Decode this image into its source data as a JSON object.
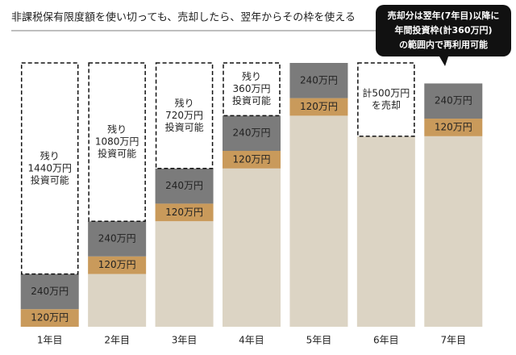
{
  "chart_data": {
    "type": "stacked-bar",
    "title": "非課税保有限度額を使い切っても、売却したら、翌年からその枠を使える",
    "callout": [
      "売却分は翌年(7年目)以降に",
      "年間投資枠(計360万円)",
      "の範囲内で再利用可能"
    ],
    "categories": [
      "1年目",
      "2年目",
      "3年目",
      "4年目",
      "5年目",
      "6年目",
      "7年目"
    ],
    "ylim": [
      0,
      1800
    ],
    "series": [
      {
        "color": "#dcd4c4",
        "values": [
          0,
          360,
          720,
          1080,
          1440,
          1300,
          1300
        ]
      },
      {
        "color": "#c99a5b",
        "values": [
          120,
          120,
          120,
          120,
          120,
          null,
          120
        ],
        "value_labels": [
          "120万円",
          "120万円",
          "120万円",
          "120万円",
          "120万円",
          null,
          "120万円"
        ]
      },
      {
        "color": "#7b7b7b",
        "values": [
          240,
          240,
          240,
          240,
          240,
          null,
          240
        ],
        "value_labels": [
          "240万円",
          "240万円",
          "240万円",
          "240万円",
          "240万円",
          null,
          "240万円"
        ]
      },
      {
        "color": "#ffffff",
        "dashed": true,
        "values": [
          1440,
          1080,
          720,
          360,
          null,
          500,
          null
        ],
        "value_labels": [
          [
            "残り",
            "1440万円",
            "投資可能"
          ],
          [
            "残り",
            "1080万円",
            "投資可能"
          ],
          [
            "残り",
            "720万円",
            "投資可能"
          ],
          [
            "残り",
            "360万円",
            "投資可能"
          ],
          null,
          [
            "計500万円",
            "を売却"
          ],
          null
        ]
      }
    ]
  }
}
